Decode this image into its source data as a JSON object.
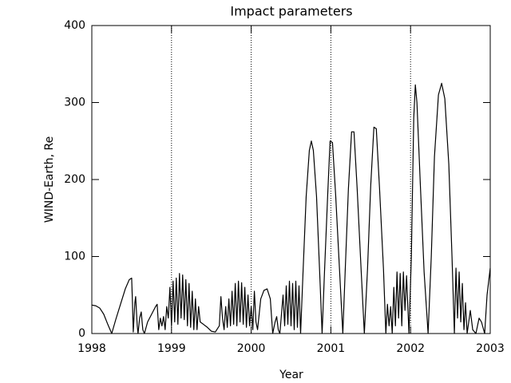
{
  "chart_data": {
    "type": "line",
    "title": "Impact parameters",
    "xlabel": "Year",
    "ylabel": "WIND-Earth, Re",
    "color": "#000000",
    "xlim": [
      1998,
      2003
    ],
    "xticks": [
      1998,
      1999,
      2000,
      2001,
      2002,
      2003
    ],
    "ylim": [
      0,
      400
    ],
    "yticks": [
      0,
      100,
      200,
      300,
      400
    ],
    "grid": "x",
    "grid_style": "dotted",
    "x": [
      1998,
      1998.05,
      1998.1,
      1998.15,
      1998.2,
      1998.25,
      1998.3,
      1998.36,
      1998.42,
      1998.47,
      1998.5,
      1998.51,
      1998.52,
      1998.54,
      1998.55,
      1998.57,
      1998.58,
      1998.6,
      1998.62,
      1998.64,
      1998.66,
      1998.7,
      1998.75,
      1998.8,
      1998.82,
      1998.84,
      1998.86,
      1998.88,
      1998.9,
      1998.92,
      1998.94,
      1998.96,
      1998.98,
      1999,
      1999.02,
      1999.04,
      1999.06,
      1999.08,
      1999.1,
      1999.12,
      1999.14,
      1999.16,
      1999.18,
      1999.2,
      1999.22,
      1999.24,
      1999.26,
      1999.28,
      1999.3,
      1999.32,
      1999.34,
      1999.36,
      1999.4,
      1999.45,
      1999.5,
      1999.55,
      1999.6,
      1999.62,
      1999.64,
      1999.66,
      1999.68,
      1999.7,
      1999.72,
      1999.74,
      1999.76,
      1999.78,
      1999.8,
      1999.82,
      1999.84,
      1999.86,
      1999.88,
      1999.9,
      1999.92,
      1999.94,
      1999.96,
      1999.98,
      2000,
      2000.02,
      2000.04,
      2000.06,
      2000.08,
      2000.12,
      2000.16,
      2000.2,
      2000.24,
      2000.27,
      2000.3,
      2000.32,
      2000.34,
      2000.36,
      2000.4,
      2000.42,
      2000.44,
      2000.46,
      2000.48,
      2000.5,
      2000.52,
      2000.54,
      2000.56,
      2000.58,
      2000.6,
      2000.62,
      2000.65,
      2000.69,
      2000.73,
      2000.755,
      2000.78,
      2000.82,
      2000.86,
      2000.89,
      2000.92,
      2000.96,
      2000.99,
      2001.02,
      2001.06,
      2001.11,
      2001.15,
      2001.18,
      2001.22,
      2001.26,
      2001.29,
      2001.33,
      2001.38,
      2001.42,
      2001.46,
      2001.5,
      2001.54,
      2001.57,
      2001.61,
      2001.66,
      2001.69,
      2001.71,
      2001.73,
      2001.75,
      2001.77,
      2001.79,
      2001.81,
      2001.83,
      2001.85,
      2001.87,
      2001.89,
      2001.91,
      2001.93,
      2001.95,
      2001.98,
      2002.01,
      2002.04,
      2002.06,
      2002.08,
      2002.12,
      2002.17,
      2002.22,
      2002.26,
      2002.3,
      2002.35,
      2002.39,
      2002.43,
      2002.48,
      2002.52,
      2002.55,
      2002.57,
      2002.59,
      2002.61,
      2002.63,
      2002.65,
      2002.67,
      2002.69,
      2002.71,
      2002.75,
      2002.78,
      2002.82,
      2002.86,
      2002.89,
      2002.93,
      2002.96,
      2003
    ],
    "values": [
      37,
      36,
      33,
      25,
      12,
      0,
      18,
      38,
      58,
      70,
      72,
      40,
      2,
      40,
      48,
      10,
      0,
      20,
      28,
      5,
      0,
      15,
      25,
      35,
      38,
      5,
      20,
      10,
      22,
      5,
      35,
      20,
      60,
      10,
      68,
      15,
      72,
      12,
      78,
      20,
      76,
      18,
      70,
      10,
      65,
      8,
      55,
      5,
      45,
      5,
      35,
      15,
      12,
      8,
      3,
      2,
      10,
      48,
      20,
      5,
      35,
      8,
      45,
      10,
      55,
      12,
      65,
      10,
      68,
      15,
      66,
      12,
      60,
      8,
      50,
      10,
      35,
      5,
      55,
      15,
      5,
      45,
      56,
      58,
      45,
      0,
      15,
      22,
      5,
      0,
      50,
      10,
      62,
      12,
      68,
      10,
      65,
      5,
      68,
      8,
      62,
      0,
      78,
      178,
      238,
      250,
      238,
      178,
      78,
      0,
      80,
      180,
      250,
      248,
      180,
      80,
      0,
      82,
      188,
      262,
      262,
      188,
      82,
      0,
      84,
      192,
      268,
      266,
      190,
      84,
      0,
      38,
      10,
      35,
      0,
      60,
      10,
      80,
      20,
      78,
      10,
      80,
      30,
      75,
      0,
      100,
      280,
      323,
      300,
      200,
      80,
      0,
      100,
      230,
      310,
      325,
      305,
      220,
      100,
      0,
      85,
      20,
      80,
      15,
      65,
      5,
      40,
      0,
      30,
      5,
      0,
      20,
      15,
      0,
      50,
      85
    ]
  }
}
